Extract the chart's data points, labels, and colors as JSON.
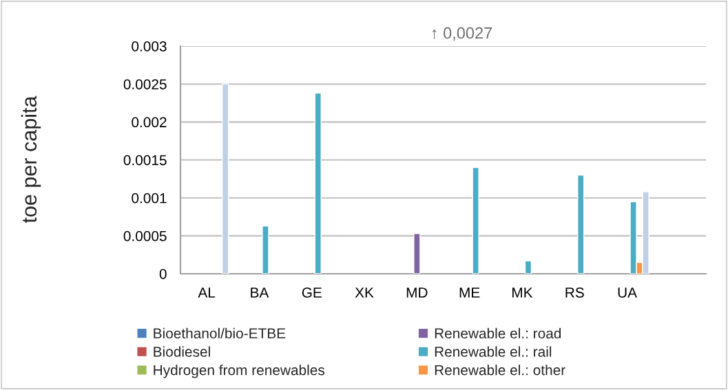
{
  "chart_data": {
    "type": "bar",
    "ylabel": "toe per capita",
    "categories": [
      "AL",
      "BA",
      "GE",
      "XK",
      "MD",
      "ME",
      "MK",
      "RS",
      "UA",
      null
    ],
    "series": [
      {
        "name": "Bioethanol/bio-ETBE",
        "color": "#4f81bd",
        "values": [
          null,
          null,
          null,
          null,
          null,
          null,
          null,
          null,
          null,
          null
        ]
      },
      {
        "name": "Biodiesel",
        "color": "#c0504d",
        "values": [
          null,
          null,
          null,
          null,
          null,
          null,
          null,
          null,
          null,
          null
        ]
      },
      {
        "name": "Hydrogen from renewables",
        "color": "#9bbb59",
        "values": [
          null,
          null,
          null,
          null,
          null,
          null,
          null,
          null,
          null,
          null
        ]
      },
      {
        "name": "Renewable el.: road",
        "color": "#8064a2",
        "values": [
          null,
          null,
          null,
          null,
          0.00053,
          null,
          null,
          null,
          null,
          null
        ]
      },
      {
        "name": "Renewable el.: rail",
        "color": "#4bacc6",
        "values": [
          null,
          0.00063,
          0.00238,
          null,
          null,
          0.0014,
          0.00017,
          0.0013,
          0.00095,
          null
        ]
      },
      {
        "name": "Renewable el.: other",
        "color": "#f79646",
        "values": [
          null,
          null,
          null,
          null,
          null,
          null,
          null,
          null,
          0.00015,
          null
        ]
      },
      {
        "color": "#c0d1e7",
        "values": [
          0.0025,
          null,
          null,
          null,
          null,
          null,
          null,
          null,
          0.00108,
          null
        ]
      }
    ],
    "ylim": [
      0,
      0.003
    ],
    "yticks": [
      0,
      0.0005,
      0.001,
      0.0015,
      0.002,
      0.0025,
      0.003
    ],
    "grid": "y",
    "legend": "bottom",
    "annotations": [
      "↑ 0,0027"
    ]
  }
}
